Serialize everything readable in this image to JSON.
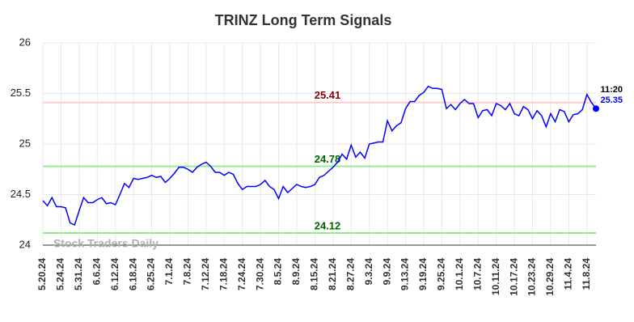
{
  "chart_data": {
    "type": "line",
    "title": "TRINZ Long Term Signals",
    "watermark": "Stock Traders Daily",
    "categories": [
      "5.20.24",
      null,
      null,
      null,
      "5.24.24",
      null,
      null,
      null,
      "5.31.24",
      null,
      null,
      null,
      "6.6.24",
      null,
      null,
      null,
      "6.12.24",
      null,
      null,
      null,
      "6.18.24",
      null,
      null,
      null,
      "6.25.24",
      null,
      null,
      null,
      "7.1.24",
      null,
      null,
      null,
      "7.8.24",
      null,
      null,
      null,
      "7.12.24",
      null,
      null,
      null,
      "7.18.24",
      null,
      null,
      null,
      "7.24.24",
      null,
      null,
      null,
      "7.30.24",
      null,
      null,
      null,
      "8.5.24",
      null,
      null,
      null,
      "8.9.24",
      null,
      null,
      null,
      "8.15.24",
      null,
      null,
      null,
      "8.21.24",
      null,
      null,
      null,
      "8.27.24",
      null,
      null,
      null,
      "9.3.24",
      null,
      null,
      null,
      "9.9.24",
      null,
      null,
      null,
      "9.13.24",
      null,
      null,
      null,
      "9.19.24",
      null,
      null,
      null,
      "9.25.24",
      null,
      null,
      null,
      "10.1.24",
      null,
      null,
      null,
      "10.7.24",
      null,
      null,
      null,
      "10.11.24",
      null,
      null,
      null,
      "10.17.24",
      null,
      null,
      null,
      "10.23.24",
      null,
      null,
      null,
      "10.29.24",
      null,
      null,
      null,
      "11.4.24",
      null,
      null,
      null,
      "11.8.24",
      null,
      null
    ],
    "series": [
      {
        "color": "#0000ff",
        "values": [
          24.44,
          24.39,
          24.47,
          24.38,
          24.38,
          24.37,
          24.22,
          24.2,
          24.34,
          24.47,
          24.42,
          24.42,
          24.45,
          24.47,
          24.41,
          24.42,
          24.4,
          24.5,
          24.61,
          24.57,
          24.66,
          24.65,
          24.66,
          24.67,
          24.69,
          24.67,
          24.68,
          24.62,
          24.66,
          24.71,
          24.77,
          24.77,
          24.75,
          24.72,
          24.77,
          24.8,
          24.82,
          24.78,
          24.72,
          24.72,
          24.69,
          24.72,
          24.7,
          24.61,
          24.55,
          24.58,
          24.58,
          24.58,
          24.6,
          24.64,
          24.58,
          24.55,
          24.46,
          24.58,
          24.52,
          24.56,
          24.6,
          24.58,
          24.57,
          24.58,
          24.6,
          24.67,
          24.69,
          24.73,
          24.77,
          24.82,
          24.9,
          24.85,
          24.99,
          24.87,
          24.92,
          24.86,
          25.0,
          25.01,
          25.02,
          25.02,
          25.23,
          25.13,
          25.18,
          25.21,
          25.35,
          25.42,
          25.42,
          25.48,
          25.51,
          25.57,
          25.55,
          25.55,
          25.54,
          25.35,
          25.39,
          25.34,
          25.4,
          25.44,
          25.4,
          25.4,
          25.26,
          25.33,
          25.34,
          25.28,
          25.4,
          25.38,
          25.34,
          25.4,
          25.3,
          25.28,
          25.37,
          25.34,
          25.25,
          25.33,
          25.28,
          25.17,
          25.3,
          25.22,
          25.34,
          25.32,
          25.22,
          25.29,
          25.3,
          25.34,
          25.49,
          25.41,
          25.35
        ]
      }
    ],
    "last_time": "11:20",
    "hlines": [
      {
        "value": 25.41,
        "color": "#ffcccc",
        "label_color": "#8b0000"
      },
      {
        "value": 24.78,
        "color": "#90ee90",
        "label_color": "#006400"
      },
      {
        "value": 24.12,
        "color": "#90ee90",
        "label_color": "#006400"
      }
    ],
    "ylim": [
      24,
      26
    ],
    "yticks": [
      24,
      24.5,
      25,
      25.5,
      26
    ],
    "grid": true
  }
}
